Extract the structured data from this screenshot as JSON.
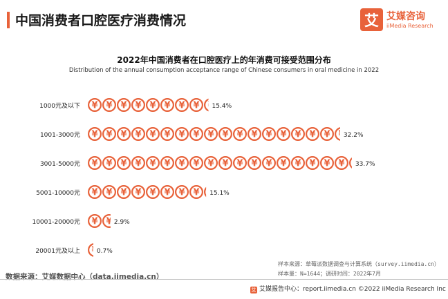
{
  "header": {
    "title": "中国消费者口腔医疗消费情况"
  },
  "logo": {
    "mark": "艾",
    "name_cn": "艾媒咨询",
    "name_en": "iiMedia Research"
  },
  "chart_data": {
    "type": "bar",
    "orientation": "horizontal",
    "title": "2022年中国消费者在口腔医疗上的年消费可接受范围分布",
    "subtitle": "Distribution of the annual consumption acceptance range of Chinese consumers in oral medicine in 2022",
    "categories": [
      "1000元及以下",
      "1001-3000元",
      "3001-5000元",
      "5001-10000元",
      "10001-20000元",
      "20001元及以上"
    ],
    "values": [
      15.4,
      32.2,
      33.7,
      15.1,
      2.9,
      0.7
    ],
    "value_labels": [
      "15.4%",
      "32.2%",
      "33.7%",
      "15.1%",
      "2.9%",
      "0.7%"
    ],
    "unit": "%",
    "icon": "yuan-coin",
    "icon_glyph": "¥",
    "xlim": [
      0,
      34.5
    ],
    "grid": false,
    "legend": "none",
    "color": "#e8623a"
  },
  "notes": {
    "sample_source": "样本来源：草莓派数据调查与计算系统（survey.iimedia.cn）",
    "sample_size": "样本量：N=1644；调研时间：2022年7月"
  },
  "footer": {
    "data_source": "数据来源：艾媒数据中心（data.iimedia.cn）",
    "report_center": "艾媒报告中心：report.iimedia.cn   ©2022  iiMedia Research  Inc"
  }
}
